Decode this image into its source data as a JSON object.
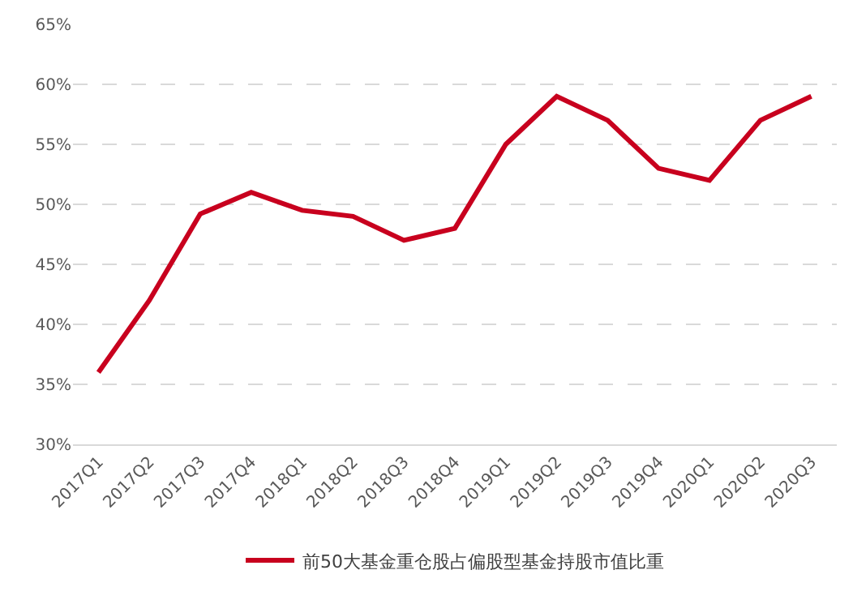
{
  "chart_data": {
    "type": "line",
    "categories": [
      "2017Q1",
      "2017Q2",
      "2017Q3",
      "2017Q4",
      "2018Q1",
      "2018Q2",
      "2018Q3",
      "2018Q4",
      "2019Q1",
      "2019Q2",
      "2019Q3",
      "2019Q4",
      "2020Q1",
      "2020Q2",
      "2020Q3"
    ],
    "series": [
      {
        "name": "前50大基金重仓股占偏股型基金持股市值比重",
        "color": "#c8001e",
        "values": [
          36,
          42,
          49.2,
          51,
          49.5,
          49,
          47,
          48,
          55,
          59,
          57,
          53,
          52,
          57,
          59
        ]
      }
    ],
    "ylim": [
      30,
      65
    ],
    "yticks": [
      {
        "value": 30,
        "label": "30%"
      },
      {
        "value": 35,
        "label": "35%"
      },
      {
        "value": 40,
        "label": "40%"
      },
      {
        "value": 45,
        "label": "45%"
      },
      {
        "value": 50,
        "label": "50%"
      },
      {
        "value": 55,
        "label": "55%"
      },
      {
        "value": 60,
        "label": "60%"
      },
      {
        "value": 65,
        "label": "65%"
      }
    ],
    "grid": "y",
    "legend": "bottom",
    "marker": "none",
    "line_style": "solid"
  }
}
